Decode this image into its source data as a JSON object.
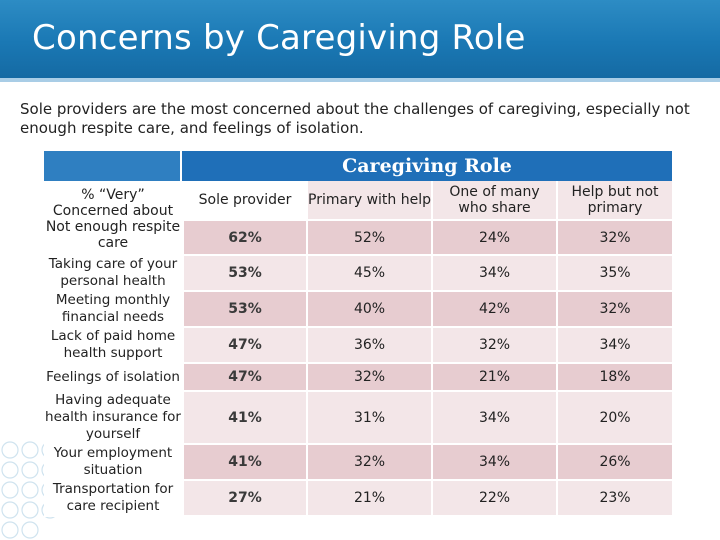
{
  "header": {
    "title": "Concerns by Caregiving Role"
  },
  "subtitle": "Sole providers are the most concerned about the challenges of caregiving, especially not enough respite care, and feelings of isolation.",
  "table": {
    "group_header": "Caregiving Role",
    "row_header_label": "% “Very” Concerned about",
    "columns": [
      "Sole provider",
      "Primary with help",
      "One of many who share",
      "Help but not primary"
    ],
    "rows": [
      {
        "label": "Not enough respite care",
        "values": [
          "62%",
          "52%",
          "24%",
          "32%"
        ]
      },
      {
        "label": "Taking care of your personal health",
        "values": [
          "53%",
          "45%",
          "34%",
          "35%"
        ]
      },
      {
        "label": "Meeting monthly financial needs",
        "values": [
          "53%",
          "40%",
          "42%",
          "32%"
        ]
      },
      {
        "label": "Lack of paid home health support",
        "values": [
          "47%",
          "36%",
          "32%",
          "34%"
        ]
      },
      {
        "label": "Feelings of isolation",
        "values": [
          "47%",
          "32%",
          "21%",
          "18%"
        ]
      },
      {
        "label": "Having adequate health insurance for yourself",
        "values": [
          "41%",
          "31%",
          "34%",
          "20%"
        ]
      },
      {
        "label": "Your employment situation",
        "values": [
          "41%",
          "32%",
          "34%",
          "26%"
        ]
      },
      {
        "label": "Transportation for care recipient",
        "values": [
          "27%",
          "21%",
          "22%",
          "23%"
        ]
      }
    ]
  },
  "colors": {
    "header_blue": "#1a78b4",
    "role_header_blue": "#1f6fb8",
    "row_shade_dark": "#e7ccd0",
    "row_shade_light": "#f3e6e8"
  }
}
